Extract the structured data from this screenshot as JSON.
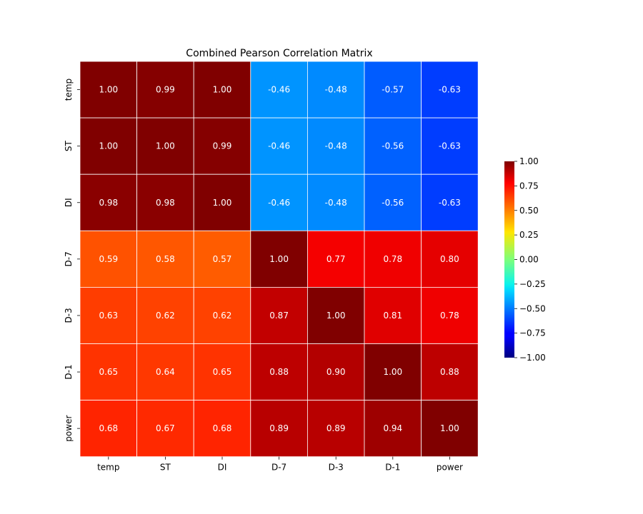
{
  "chart_data": {
    "type": "heatmap",
    "title": "Combined Pearson Correlation Matrix",
    "x_labels": [
      "temp",
      "ST",
      "DI",
      "D-7",
      "D-3",
      "D-1",
      "power"
    ],
    "y_labels": [
      "temp",
      "ST",
      "DI",
      "D-7",
      "D-3",
      "D-1",
      "power"
    ],
    "values": [
      [
        1.0,
        0.99,
        1.0,
        -0.46,
        -0.48,
        -0.57,
        -0.63
      ],
      [
        1.0,
        1.0,
        0.99,
        -0.46,
        -0.48,
        -0.56,
        -0.63
      ],
      [
        0.98,
        0.98,
        1.0,
        -0.46,
        -0.48,
        -0.56,
        -0.63
      ],
      [
        0.59,
        0.58,
        0.57,
        1.0,
        0.77,
        0.78,
        0.8
      ],
      [
        0.63,
        0.62,
        0.62,
        0.87,
        1.0,
        0.81,
        0.78
      ],
      [
        0.65,
        0.64,
        0.65,
        0.88,
        0.9,
        1.0,
        0.88
      ],
      [
        0.68,
        0.67,
        0.68,
        0.89,
        0.89,
        0.94,
        1.0
      ]
    ],
    "value_format": "0.00",
    "colormap": "jet",
    "vmin": -1.0,
    "vmax": 1.0,
    "colorbar_ticks": [
      "1.00",
      "0.75",
      "0.50",
      "0.25",
      "0.00",
      "−0.25",
      "−0.50",
      "−0.75",
      "−1.00"
    ],
    "grid_line_color": "#ffffff",
    "annotation_color": "#ffffff"
  }
}
